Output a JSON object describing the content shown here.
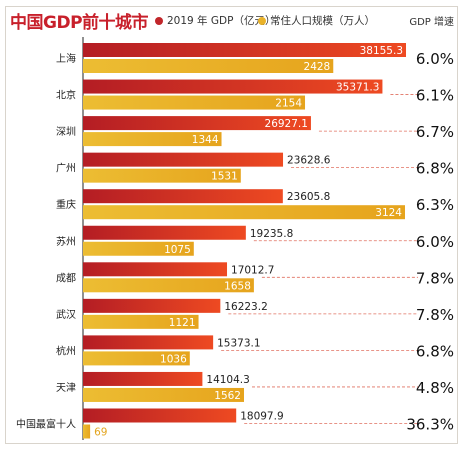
{
  "title": "中国GDP前十城市",
  "legend": {
    "gdp": "2019 年 GDP（亿元）",
    "population": "常住人口规模（万人）"
  },
  "growth_header": "GDP 增速",
  "colors": {
    "title": "#c8202b",
    "gdp_start": "#b41d24",
    "gdp_end": "#ee4a22",
    "pop_start": "#ecbd33",
    "pop_end": "#e6a41d",
    "dash": "#e07060"
  },
  "chart_data": {
    "type": "bar",
    "orientation": "horizontal",
    "categories": [
      "上海",
      "北京",
      "深圳",
      "广州",
      "重庆",
      "苏州",
      "成都",
      "武汉",
      "杭州",
      "天津",
      "中国最富十人"
    ],
    "series": [
      {
        "name": "2019 年 GDP（亿元）",
        "values": [
          38155.3,
          35371.3,
          26927.1,
          23628.6,
          23605.8,
          19235.8,
          17012.7,
          16223.2,
          15373.1,
          14104.3,
          18097.9
        ]
      },
      {
        "name": "常住人口规模（万人）",
        "values": [
          2428,
          2154,
          1344,
          1531,
          3124,
          1075,
          1658,
          1121,
          1036,
          1562,
          69
        ]
      }
    ],
    "gdp_labels": [
      "38155.3",
      "35371.3",
      "26927.1",
      "23628.6",
      "23605.8",
      "19235.8",
      "17012.7",
      "16223.2",
      "15373.1",
      "14104.3",
      "18097.9"
    ],
    "population_labels": [
      "2428",
      "2154",
      "1344",
      "1531",
      "3124",
      "1075",
      "1658",
      "1121",
      "1036",
      "1562",
      "69"
    ],
    "growth": [
      "6.0%",
      "6.1%",
      "6.7%",
      "6.8%",
      "6.3%",
      "6.0%",
      "7.8%",
      "7.8%",
      "6.8%",
      "4.8%",
      "36.3%"
    ]
  }
}
